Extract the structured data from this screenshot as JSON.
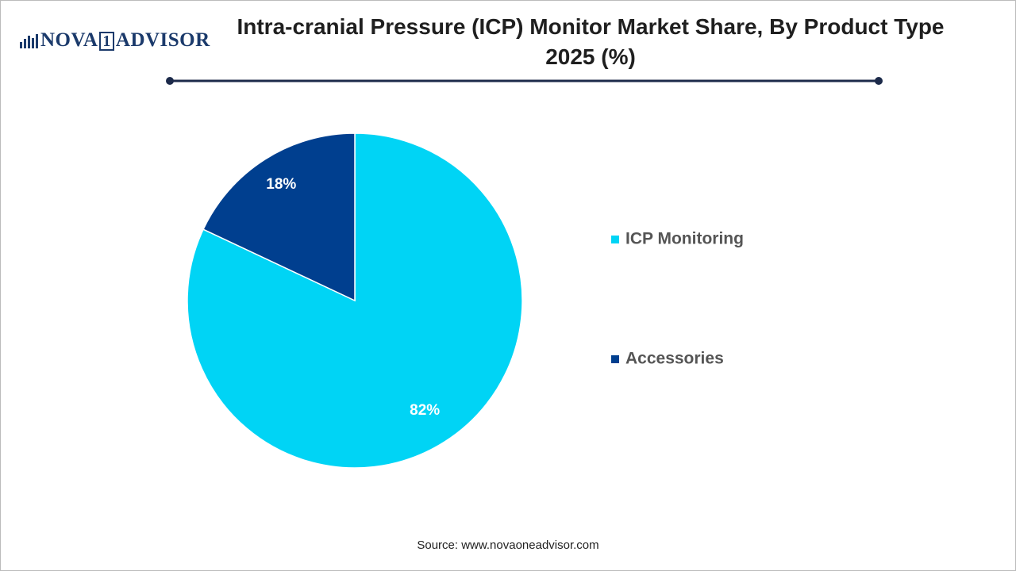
{
  "logo": {
    "parts": [
      "NOVA",
      "1",
      "ADVISOR"
    ]
  },
  "chart_data": {
    "type": "pie",
    "title": "Intra-cranial Pressure (ICP) Monitor Market Share, By Product Type 2025 (%)",
    "categories": [
      "ICP Monitoring",
      "Accessories"
    ],
    "values": [
      82,
      18
    ],
    "value_labels": [
      "82%",
      "18%"
    ],
    "colors": [
      "#00d4f5",
      "#003f8f"
    ],
    "legend": "right",
    "source": "Source: www.novaoneadvisor.com"
  }
}
